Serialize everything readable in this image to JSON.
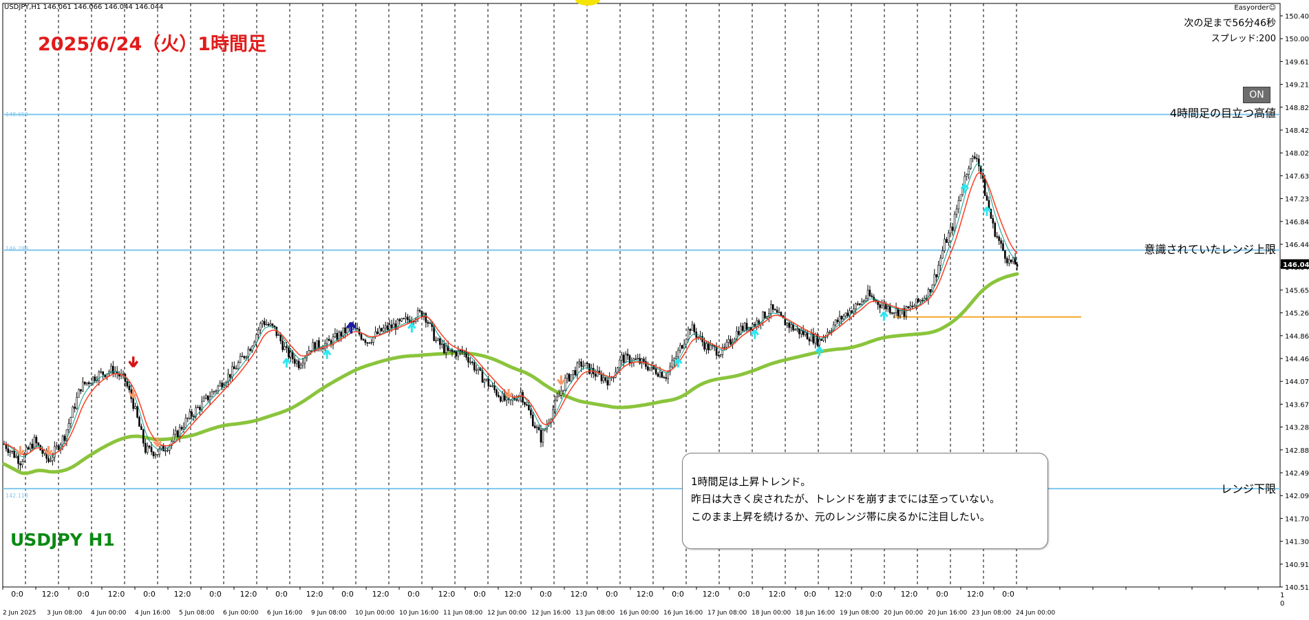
{
  "header": {
    "symbol_info": "USDJPY,H1  146.061 146.066 146.044 146.044",
    "title": "2025/6/24（火）1時間足",
    "pair_label": "USDJPY H1"
  },
  "panel": {
    "ea_name": "Easyorder☺",
    "countdown": "次の足まで56分46秒",
    "spread": "スプレッド:200",
    "on_button": "ON"
  },
  "lines": {
    "h4_high": {
      "label": "4時間足の目立つ高値",
      "price_tag": "148.659"
    },
    "range_high": {
      "label": "意識されていたレンジ上限",
      "price_tag": "146.288"
    },
    "range_low": {
      "label": "レンジ下限",
      "price_tag": "142.118"
    }
  },
  "comment": {
    "lines": [
      "1時間足は上昇トレンド。",
      "昨日は大きく戻されたが、トレンドを崩すまでには至っていない。",
      "このまま上昇を続けるか、元のレンジ帯に戻るかに注目したい。"
    ]
  },
  "colors": {
    "grid": "#000000",
    "candle": "#000000",
    "level_line": "#7ec6ee",
    "ma_fast": "#ff3b1f",
    "ma_mid": "#0a9a8a",
    "ma_slow": "#8ac43c",
    "support_line": "#f5a623",
    "arrow_up": "#2ee6f0",
    "arrow_down": "#f7976a",
    "title_red": "#e11b1b",
    "pair_green": "#0a8a12",
    "current_price_bg": "#000000"
  },
  "chart_data": {
    "type": "candlestick",
    "y_ticks": [
      "150.400",
      "150.000",
      "149.610",
      "149.210",
      "148.820",
      "148.420",
      "148.020",
      "147.630",
      "147.230",
      "146.840",
      "146.440",
      "146.044",
      "145.650",
      "145.260",
      "144.860",
      "144.460",
      "144.070",
      "143.670",
      "143.280",
      "142.880",
      "142.490",
      "142.090",
      "141.700",
      "141.300",
      "140.910",
      "140.510"
    ],
    "current_price": "146.044",
    "x_ticks_top": [
      "0:0",
      "12:0",
      "0:0",
      "12:0",
      "0:0",
      "12:0",
      "0:0",
      "12:0",
      "0:0",
      "12:0",
      "0:0",
      "12:0",
      "0:0",
      "12:0",
      "0:0",
      "12:0",
      "0:0",
      "12:0",
      "0:0",
      "12:0",
      "0:0",
      "12:0",
      "0:0",
      "12:0",
      "0:0",
      "12:0",
      "0:0",
      "12:0",
      "0:0",
      "12:0",
      "0:0"
    ],
    "x_ticks_bottom": [
      "2 Jun 2025",
      "3 Jun 08:00",
      "4 Jun 00:00",
      "4 Jun 16:00",
      "5 Jun 08:00",
      "6 Jun 00:00",
      "6 Jun 16:00",
      "9 Jun 08:00",
      "10 Jun 00:00",
      "10 Jun 16:00",
      "11 Jun 08:00",
      "12 Jun 00:00",
      "12 Jun 16:00",
      "13 Jun 08:00",
      "16 Jun 00:00",
      "16 Jun 16:00",
      "17 Jun 08:00",
      "18 Jun 00:00",
      "18 Jun 16:00",
      "19 Jun 08:00",
      "20 Jun 00:00",
      "20 Jun 16:00",
      "23 Jun 08:00",
      "24 Jun 00:00"
    ],
    "axis_scale_end": [
      "1",
      "0"
    ],
    "levels": [
      148.659,
      146.288,
      142.118
    ],
    "support_level": 145.12,
    "y_range": [
      140.4,
      150.6
    ],
    "anchors": [
      [
        0,
        142.9
      ],
      [
        8,
        142.6
      ],
      [
        15,
        142.95
      ],
      [
        22,
        142.6
      ],
      [
        30,
        143.05
      ],
      [
        38,
        143.9
      ],
      [
        46,
        144.1
      ],
      [
        54,
        144.2
      ],
      [
        60,
        144.0
      ],
      [
        64,
        143.6
      ],
      [
        70,
        142.8
      ],
      [
        76,
        142.75
      ],
      [
        82,
        142.9
      ],
      [
        90,
        143.3
      ],
      [
        98,
        143.6
      ],
      [
        106,
        143.9
      ],
      [
        114,
        144.2
      ],
      [
        122,
        144.6
      ],
      [
        128,
        145.05
      ],
      [
        134,
        144.9
      ],
      [
        140,
        144.5
      ],
      [
        146,
        144.3
      ],
      [
        152,
        144.6
      ],
      [
        160,
        144.65
      ],
      [
        166,
        144.8
      ],
      [
        172,
        144.95
      ],
      [
        180,
        144.7
      ],
      [
        188,
        144.9
      ],
      [
        196,
        145.0
      ],
      [
        204,
        145.15
      ],
      [
        208,
        145.2
      ],
      [
        214,
        144.7
      ],
      [
        220,
        144.5
      ],
      [
        228,
        144.5
      ],
      [
        236,
        144.1
      ],
      [
        244,
        143.8
      ],
      [
        250,
        143.6
      ],
      [
        256,
        143.8
      ],
      [
        262,
        143.3
      ],
      [
        266,
        143.0
      ],
      [
        272,
        143.5
      ],
      [
        278,
        144.0
      ],
      [
        286,
        144.3
      ],
      [
        294,
        144.1
      ],
      [
        300,
        144.0
      ],
      [
        306,
        144.4
      ],
      [
        314,
        144.35
      ],
      [
        322,
        144.2
      ],
      [
        328,
        144.1
      ],
      [
        334,
        144.5
      ],
      [
        340,
        144.95
      ],
      [
        348,
        144.6
      ],
      [
        356,
        144.5
      ],
      [
        364,
        144.9
      ],
      [
        372,
        145.0
      ],
      [
        380,
        145.25
      ],
      [
        386,
        145.05
      ],
      [
        392,
        144.9
      ],
      [
        398,
        144.8
      ],
      [
        404,
        144.7
      ],
      [
        410,
        144.95
      ],
      [
        418,
        145.2
      ],
      [
        424,
        145.35
      ],
      [
        428,
        145.5
      ],
      [
        434,
        145.35
      ],
      [
        440,
        145.25
      ],
      [
        446,
        145.2
      ],
      [
        452,
        145.35
      ],
      [
        458,
        145.55
      ],
      [
        462,
        145.9
      ],
      [
        466,
        146.4
      ],
      [
        470,
        146.7
      ],
      [
        474,
        147.3
      ],
      [
        478,
        147.8
      ],
      [
        482,
        147.95
      ],
      [
        486,
        147.3
      ],
      [
        490,
        146.7
      ],
      [
        494,
        146.35
      ],
      [
        498,
        146.08
      ],
      [
        502,
        146.044
      ]
    ]
  }
}
